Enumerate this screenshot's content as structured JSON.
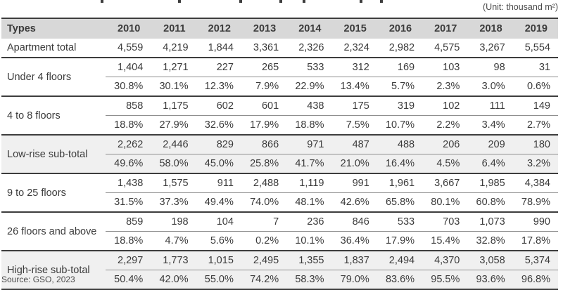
{
  "unit_label": "(Unit: thousand m²)",
  "source_label": "Source: GSO, 2023",
  "colors": {
    "header_bg": "#d8d8d8",
    "subtotal_row_bg": "#f0f0f0",
    "rule_dark": "#3d3d3d",
    "rule_thin": "#8f8f8f",
    "text": "#3b3b3b"
  },
  "table": {
    "header": [
      "Types",
      "2010",
      "2011",
      "2012",
      "2013",
      "2014",
      "2015",
      "2016",
      "2017",
      "2018",
      "2019"
    ],
    "rows": [
      {
        "label": "Apartment total",
        "kind": "single",
        "shaded": false,
        "values": [
          "4,559",
          "4,219",
          "1,844",
          "3,361",
          "2,326",
          "2,324",
          "2,982",
          "4,575",
          "3,267",
          "5,554"
        ]
      },
      {
        "label": "Under 4 floors",
        "kind": "group",
        "shaded": false,
        "counts": [
          "1,404",
          "1,271",
          "227",
          "265",
          "533",
          "312",
          "169",
          "103",
          "98",
          "31"
        ],
        "percents": [
          "30.8%",
          "30.1%",
          "12.3%",
          "7.9%",
          "22.9%",
          "13.4%",
          "5.7%",
          "2.3%",
          "3.0%",
          "0.6%"
        ]
      },
      {
        "label": "4 to 8 floors",
        "kind": "group",
        "shaded": false,
        "counts": [
          "858",
          "1,175",
          "602",
          "601",
          "438",
          "175",
          "319",
          "102",
          "111",
          "149"
        ],
        "percents": [
          "18.8%",
          "27.9%",
          "32.6%",
          "17.9%",
          "18.8%",
          "7.5%",
          "10.7%",
          "2.2%",
          "3.4%",
          "2.7%"
        ]
      },
      {
        "label": "Low-rise sub-total",
        "kind": "group",
        "shaded": true,
        "counts": [
          "2,262",
          "2,446",
          "829",
          "866",
          "971",
          "487",
          "488",
          "206",
          "209",
          "180"
        ],
        "percents": [
          "49.6%",
          "58.0%",
          "45.0%",
          "25.8%",
          "41.7%",
          "21.0%",
          "16.4%",
          "4.5%",
          "6.4%",
          "3.2%"
        ]
      },
      {
        "label": "9 to 25 floors",
        "kind": "group",
        "shaded": false,
        "counts": [
          "1,438",
          "1,575",
          "911",
          "2,488",
          "1,119",
          "991",
          "1,961",
          "3,667",
          "1,985",
          "4,384"
        ],
        "percents": [
          "31.5%",
          "37.3%",
          "49.4%",
          "74.0%",
          "48.1%",
          "42.6%",
          "65.8%",
          "80.1%",
          "60.8%",
          "78.9%"
        ]
      },
      {
        "label": "26 floors and above",
        "kind": "group",
        "shaded": false,
        "counts": [
          "859",
          "198",
          "104",
          "7",
          "236",
          "846",
          "533",
          "703",
          "1,073",
          "990"
        ],
        "percents": [
          "18.8%",
          "4.7%",
          "5.6%",
          "0.2%",
          "10.1%",
          "36.4%",
          "17.9%",
          "15.4%",
          "32.8%",
          "17.8%"
        ]
      },
      {
        "label": "High-rise sub-total",
        "kind": "group",
        "shaded": true,
        "counts": [
          "2,297",
          "1,773",
          "1,015",
          "2,495",
          "1,355",
          "1,837",
          "2,494",
          "4,370",
          "3,058",
          "5,374"
        ],
        "percents": [
          "50.4%",
          "42.0%",
          "55.0%",
          "74.2%",
          "58.3%",
          "79.0%",
          "83.6%",
          "95.5%",
          "93.6%",
          "96.8%"
        ]
      }
    ]
  },
  "chart_data": {
    "type": "table",
    "unit": "thousand m²",
    "source": "GSO, 2023",
    "x": [
      2010,
      2011,
      2012,
      2013,
      2014,
      2015,
      2016,
      2017,
      2018,
      2019
    ],
    "series": [
      {
        "name": "Apartment total",
        "values": [
          4559,
          4219,
          1844,
          3361,
          2326,
          2324,
          2982,
          4575,
          3267,
          5554
        ]
      },
      {
        "name": "Under 4 floors",
        "values": [
          1404,
          1271,
          227,
          265,
          533,
          312,
          169,
          103,
          98,
          31
        ],
        "share_pct": [
          30.8,
          30.1,
          12.3,
          7.9,
          22.9,
          13.4,
          5.7,
          2.3,
          3.0,
          0.6
        ]
      },
      {
        "name": "4 to 8 floors",
        "values": [
          858,
          1175,
          602,
          601,
          438,
          175,
          319,
          102,
          111,
          149
        ],
        "share_pct": [
          18.8,
          27.9,
          32.6,
          17.9,
          18.8,
          7.5,
          10.7,
          2.2,
          3.4,
          2.7
        ]
      },
      {
        "name": "Low-rise sub-total",
        "values": [
          2262,
          2446,
          829,
          866,
          971,
          487,
          488,
          206,
          209,
          180
        ],
        "share_pct": [
          49.6,
          58.0,
          45.0,
          25.8,
          41.7,
          21.0,
          16.4,
          4.5,
          6.4,
          3.2
        ]
      },
      {
        "name": "9 to 25 floors",
        "values": [
          1438,
          1575,
          911,
          2488,
          1119,
          991,
          1961,
          3667,
          1985,
          4384
        ],
        "share_pct": [
          31.5,
          37.3,
          49.4,
          74.0,
          48.1,
          42.6,
          65.8,
          80.1,
          60.8,
          78.9
        ]
      },
      {
        "name": "26 floors and above",
        "values": [
          859,
          198,
          104,
          7,
          236,
          846,
          533,
          703,
          1073,
          990
        ],
        "share_pct": [
          18.8,
          4.7,
          5.6,
          0.2,
          10.1,
          36.4,
          17.9,
          15.4,
          32.8,
          17.8
        ]
      },
      {
        "name": "High-rise sub-total",
        "values": [
          2297,
          1773,
          1015,
          2495,
          1355,
          1837,
          2494,
          4370,
          3058,
          5374
        ],
        "share_pct": [
          50.4,
          42.0,
          55.0,
          74.2,
          58.3,
          79.0,
          83.6,
          95.5,
          93.6,
          96.8
        ]
      }
    ]
  }
}
